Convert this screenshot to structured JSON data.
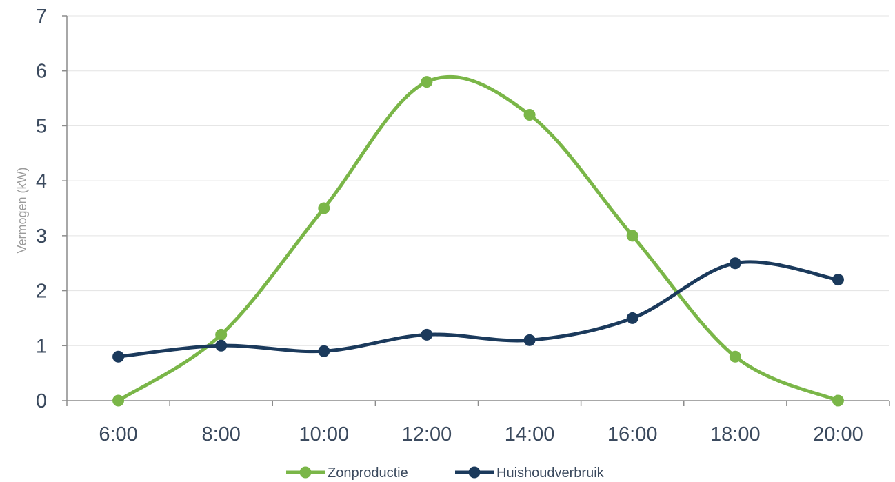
{
  "chart_data": {
    "type": "line",
    "title": "",
    "xlabel": "",
    "ylabel": "Vermogen (kW)",
    "categories": [
      "6:00",
      "8:00",
      "10:00",
      "12:00",
      "14:00",
      "16:00",
      "18:00",
      "20:00"
    ],
    "ylim": [
      0,
      7
    ],
    "yticks": [
      "0",
      "1",
      "2",
      "3",
      "4",
      "5",
      "6",
      "7"
    ],
    "grid": "horizontal",
    "smooth": true,
    "legend_position": "bottom",
    "series": [
      {
        "name": "Zonproductie",
        "color": "#7ab648",
        "values": [
          0,
          1.2,
          3.5,
          5.8,
          5.2,
          3.0,
          0.8,
          0
        ]
      },
      {
        "name": "Huishoudverbruik",
        "color": "#1b3a5c",
        "values": [
          0.8,
          1.0,
          0.9,
          1.2,
          1.1,
          1.5,
          2.5,
          2.2
        ]
      }
    ]
  }
}
